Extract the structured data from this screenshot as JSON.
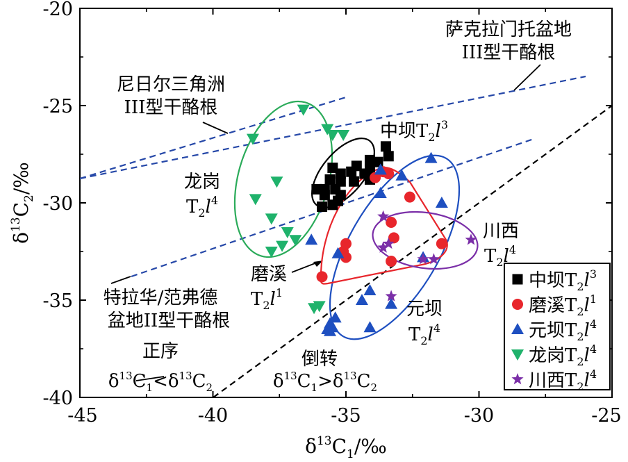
{
  "chart_data": {
    "type": "scatter",
    "xlabel": "δ13C1/‰",
    "ylabel": "δ13C2/‰",
    "xlim": [
      -45,
      -25
    ],
    "ylim": [
      -40,
      -20
    ],
    "xticks": [
      -45,
      -40,
      -35,
      -30,
      -25
    ],
    "yticks": [
      -40,
      -35,
      -30,
      -25,
      -20
    ],
    "grid": false,
    "legend_position": "bottom-right",
    "series": [
      {
        "name": "中坝T2l3",
        "label_base": "中坝T",
        "sub": "2",
        "l_sup": "3",
        "marker": "square",
        "color": "#000000",
        "points": [
          [
            -35.9,
            -30.2
          ],
          [
            -35.5,
            -30.1
          ],
          [
            -35.3,
            -29.9
          ],
          [
            -35.8,
            -29.6
          ],
          [
            -35.2,
            -29.6
          ],
          [
            -36.1,
            -29.3
          ],
          [
            -35.8,
            -29.3
          ],
          [
            -35.4,
            -29.3
          ],
          [
            -35.2,
            -28.9
          ],
          [
            -34.7,
            -28.9
          ],
          [
            -35.6,
            -28.8
          ],
          [
            -34.1,
            -28.8
          ],
          [
            -35.2,
            -28.5
          ],
          [
            -34.3,
            -28.5
          ],
          [
            -34.8,
            -28.4
          ],
          [
            -34.1,
            -28.3
          ],
          [
            -35.5,
            -28.2
          ],
          [
            -34.6,
            -28.1
          ],
          [
            -33.8,
            -27.9
          ],
          [
            -34.1,
            -27.8
          ],
          [
            -33.4,
            -27.6
          ],
          [
            -33.5,
            -27.1
          ]
        ]
      },
      {
        "name": "磨溪T2l1",
        "label_base": "磨溪T",
        "sub": "2",
        "l_sup": "1",
        "marker": "circle",
        "color": "#e8262c",
        "points": [
          [
            -35.9,
            -33.8
          ],
          [
            -35.0,
            -32.1
          ],
          [
            -35.1,
            -32.5
          ],
          [
            -35.0,
            -32.8
          ],
          [
            -33.2,
            -31.8
          ],
          [
            -33.3,
            -33.0
          ],
          [
            -31.4,
            -32.1
          ],
          [
            -32.6,
            -29.7
          ],
          [
            -33.4,
            -28.5
          ],
          [
            -33.6,
            -28.4
          ],
          [
            -33.9,
            -28.7
          ],
          [
            -33.3,
            -31.0
          ]
        ]
      },
      {
        "name": "元坝T2l4",
        "label_base": "元坝T",
        "sub": "2",
        "l_sup": "4",
        "marker": "triangle",
        "color": "#1e4fc0",
        "points": [
          [
            -36.3,
            -31.9
          ],
          [
            -35.3,
            -32.6
          ],
          [
            -33.7,
            -29.5
          ],
          [
            -32.9,
            -28.6
          ],
          [
            -31.8,
            -27.7
          ],
          [
            -31.4,
            -30.0
          ],
          [
            -32.1,
            -32.8
          ],
          [
            -34.1,
            -34.5
          ],
          [
            -34.4,
            -35.0
          ],
          [
            -35.6,
            -36.2
          ],
          [
            -35.4,
            -35.9
          ],
          [
            -35.6,
            -36.6
          ],
          [
            -35.5,
            -36.4
          ],
          [
            -35.7,
            -36.5
          ],
          [
            -34.1,
            -36.4
          ],
          [
            -33.3,
            -35.2
          ],
          [
            -33.7,
            -28.3
          ]
        ]
      },
      {
        "name": "龙岗T2l4",
        "label_base": "龙岗T",
        "sub": "2",
        "l_sup": "4",
        "marker": "triangle-down",
        "color": "#1fb26b",
        "points": [
          [
            -38.5,
            -26.7
          ],
          [
            -36.6,
            -25.2
          ],
          [
            -35.7,
            -26.2
          ],
          [
            -35.5,
            -26.5
          ],
          [
            -35.1,
            -26.5
          ],
          [
            -37.6,
            -28.9
          ],
          [
            -38.4,
            -29.8
          ],
          [
            -37.8,
            -30.8
          ],
          [
            -37.2,
            -31.5
          ],
          [
            -36.9,
            -31.9
          ],
          [
            -37.4,
            -32.2
          ],
          [
            -37.8,
            -32.5
          ],
          [
            -36.2,
            -35.4
          ],
          [
            -36.0,
            -35.3
          ]
        ]
      },
      {
        "name": "川西T2l4",
        "label_base": "川西T",
        "sub": "2",
        "l_sup": "4",
        "marker": "star",
        "color": "#7b2fa8",
        "points": [
          [
            -33.6,
            -30.7
          ],
          [
            -33.4,
            -32.1
          ],
          [
            -33.6,
            -32.3
          ],
          [
            -32.1,
            -32.9
          ],
          [
            -31.7,
            -32.9
          ],
          [
            -30.3,
            -31.9
          ],
          [
            -33.3,
            -34.8
          ]
        ]
      }
    ]
  },
  "annotations": {
    "sakelamen": [
      "萨克拉门托盆地",
      "III型干酪根"
    ],
    "niger": [
      "尼日尔三角洲",
      "III型干酪根"
    ],
    "trinidad": [
      "特拉华/范弗德",
      "盆地II型干酪根"
    ],
    "longgang": [
      "龙岗",
      "T",
      "2",
      "l",
      "4"
    ],
    "zhongba": [
      "中坝T",
      "2",
      "l",
      "3"
    ],
    "moxi": [
      "磨溪",
      "T",
      "2",
      "l",
      "1"
    ],
    "yuanba": [
      "元坝",
      "T",
      "2",
      "l",
      "4"
    ],
    "chuanxi": [
      "川西",
      "T",
      "2",
      "l",
      "4"
    ],
    "normal": [
      "正序",
      "δ",
      "13",
      "C",
      "1",
      "<δ",
      "13",
      "C",
      "2"
    ],
    "reversed": [
      "倒转",
      "δ",
      "13",
      "C",
      "1",
      ">δ",
      "13",
      "C",
      "2"
    ]
  },
  "axis_labels": {
    "x": [
      "δ",
      "13",
      "C",
      "1",
      "/‰"
    ],
    "y": [
      "δ",
      "13",
      "C",
      "2",
      "/‰"
    ]
  },
  "colors": {
    "black_series": "#000000",
    "red_series": "#e8262c",
    "blue_series": "#1e4fc0",
    "green_series": "#1fb26b",
    "purple_series": "#7b2fa8",
    "kerogen_lines": "#2648a8",
    "reversal_line": "#000000"
  }
}
